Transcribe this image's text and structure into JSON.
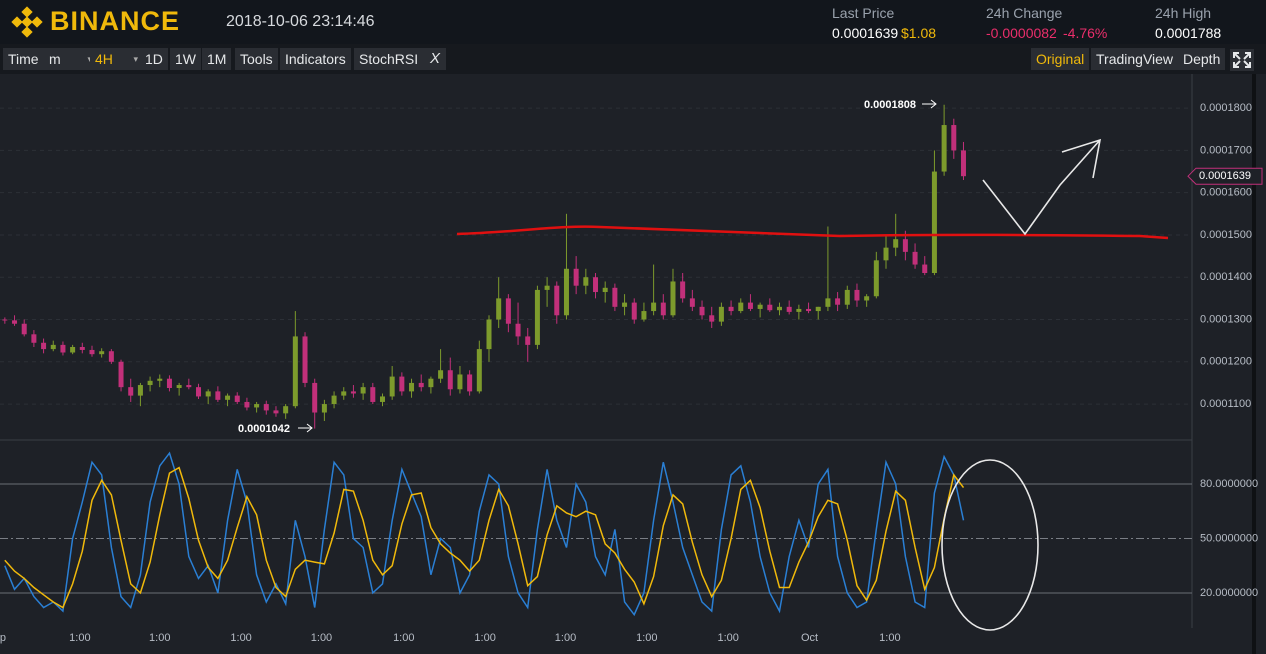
{
  "header": {
    "logo": "BINANCE",
    "datetime": "2018-10-06 23:14:46",
    "stats": [
      {
        "label": "Last Price",
        "value": "0.0001639",
        "extra": "$1.08"
      },
      {
        "label": "24h Change",
        "value": "-0.0000082",
        "extra": "-4.76%"
      },
      {
        "label": "24h High",
        "value": "0.0001788"
      }
    ]
  },
  "toolbar": {
    "left": [
      "Time",
      "m",
      "4H",
      "1D",
      "1W",
      "1M",
      "Tools",
      "Indicators",
      "StochRSI"
    ],
    "close": "X",
    "right": [
      "Original",
      "TradingView",
      "Depth"
    ]
  },
  "chart_data": [
    {
      "type": "candlestick",
      "up_color": "#7d9b2c",
      "down_color": "#c2307a",
      "open": [
        0.00013,
        0.0001298,
        0.000129,
        0.0001265,
        0.0001245,
        0.000123,
        0.000124,
        0.0001222,
        0.0001235,
        0.0001228,
        0.0001218,
        0.0001225,
        0.00012,
        0.000114,
        0.000112,
        0.0001145,
        0.0001155,
        0.000116,
        0.0001138,
        0.0001145,
        0.000114,
        0.0001118,
        0.000113,
        0.000111,
        0.000112,
        0.0001105,
        0.0001092,
        0.00011,
        0.0001085,
        0.0001078,
        0.0001095,
        0.000126,
        0.000115,
        0.000108,
        0.00011,
        0.000112,
        0.000113,
        0.0001125,
        0.000114,
        0.0001105,
        0.0001118,
        0.0001165,
        0.000113,
        0.000115,
        0.000114,
        0.000116,
        0.000118,
        0.0001135,
        0.000117,
        0.000113,
        0.000123,
        0.00013,
        0.000135,
        0.000129,
        0.000126,
        0.000124,
        0.000137,
        0.000138,
        0.000131,
        0.000142,
        0.000138,
        0.00014,
        0.0001365,
        0.0001375,
        0.000133,
        0.000134,
        0.00013,
        0.000132,
        0.000134,
        0.000131,
        0.000139,
        0.000135,
        0.000133,
        0.000131,
        0.0001295,
        0.000133,
        0.000132,
        0.000134,
        0.0001325,
        0.0001335,
        0.0001322,
        0.000133,
        0.0001318,
        0.0001325,
        0.000132,
        0.000133,
        0.000135,
        0.0001335,
        0.000137,
        0.0001345,
        0.0001355,
        0.000144,
        0.000147,
        0.000149,
        0.000146,
        0.000143,
        0.000141,
        0.000165,
        0.000176,
        0.00017
      ],
      "high": [
        0.0001305,
        0.000131,
        0.00013,
        0.0001275,
        0.0001255,
        0.000125,
        0.0001248,
        0.000124,
        0.0001245,
        0.0001238,
        0.0001232,
        0.000123,
        0.0001205,
        0.000116,
        0.000115,
        0.0001165,
        0.000117,
        0.0001168,
        0.000115,
        0.000116,
        0.0001148,
        0.0001135,
        0.0001142,
        0.0001125,
        0.0001128,
        0.0001115,
        0.0001105,
        0.0001108,
        0.0001095,
        0.00011,
        0.000132,
        0.000127,
        0.000116,
        0.000111,
        0.000113,
        0.000114,
        0.0001145,
        0.000115,
        0.000115,
        0.0001125,
        0.000119,
        0.0001175,
        0.000116,
        0.000117,
        0.0001165,
        0.000123,
        0.000121,
        0.000119,
        0.000118,
        0.000125,
        0.000131,
        0.00014,
        0.000136,
        0.000134,
        0.000128,
        0.000138,
        0.00014,
        0.000139,
        0.000155,
        0.000145,
        0.000142,
        0.000141,
        0.000139,
        0.0001385,
        0.000136,
        0.000135,
        0.000134,
        0.000143,
        0.000136,
        0.000142,
        0.000141,
        0.000137,
        0.0001345,
        0.000133,
        0.000134,
        0.0001345,
        0.000135,
        0.000136,
        0.000134,
        0.000135,
        0.000134,
        0.0001345,
        0.0001335,
        0.000134,
        0.000133,
        0.000152,
        0.0001365,
        0.000138,
        0.0001385,
        0.000136,
        0.000146,
        0.00015,
        0.000155,
        0.000151,
        0.000148,
        0.000145,
        0.00017,
        0.0001808,
        0.0001775,
        0.000172
      ],
      "low": [
        0.000129,
        0.0001285,
        0.000126,
        0.0001235,
        0.000122,
        0.0001225,
        0.0001215,
        0.0001218,
        0.000122,
        0.0001212,
        0.000121,
        0.0001195,
        0.000113,
        0.0001105,
        0.0001095,
        0.000113,
        0.000114,
        0.000113,
        0.000112,
        0.0001135,
        0.0001112,
        0.00011,
        0.0001105,
        0.0001095,
        0.00011,
        0.0001085,
        0.000108,
        0.0001075,
        0.000107,
        0.0001065,
        0.000109,
        0.000114,
        0.0001042,
        0.000106,
        0.000109,
        0.000111,
        0.0001115,
        0.000111,
        0.00011,
        0.0001095,
        0.000111,
        0.000112,
        0.0001115,
        0.000113,
        0.0001125,
        0.000115,
        0.000112,
        0.0001125,
        0.000112,
        0.0001125,
        0.00012,
        0.000128,
        0.000127,
        0.000124,
        0.00012,
        0.000123,
        0.000133,
        0.000129,
        0.00013,
        0.000136,
        0.000136,
        0.000135,
        0.000134,
        0.000132,
        0.000131,
        0.000129,
        0.0001295,
        0.000131,
        0.00013,
        0.0001305,
        0.000134,
        0.000132,
        0.00013,
        0.000128,
        0.0001285,
        0.000131,
        0.0001315,
        0.000132,
        0.0001305,
        0.0001318,
        0.000131,
        0.0001312,
        0.00013,
        0.0001315,
        0.00013,
        0.000132,
        0.000132,
        0.0001325,
        0.000133,
        0.000133,
        0.000135,
        0.000142,
        0.000145,
        0.000144,
        0.000142,
        0.0001405,
        0.0001405,
        0.000164,
        0.000168,
        0.000163
      ],
      "close": [
        0.0001298,
        0.000129,
        0.0001265,
        0.0001245,
        0.000123,
        0.000124,
        0.0001222,
        0.0001235,
        0.0001228,
        0.0001218,
        0.0001225,
        0.00012,
        0.000114,
        0.000112,
        0.0001145,
        0.0001155,
        0.000116,
        0.0001138,
        0.0001145,
        0.000114,
        0.0001118,
        0.000113,
        0.000111,
        0.000112,
        0.0001105,
        0.0001092,
        0.00011,
        0.0001085,
        0.0001078,
        0.0001095,
        0.000126,
        0.000115,
        0.000108,
        0.00011,
        0.000112,
        0.000113,
        0.0001125,
        0.000114,
        0.0001105,
        0.0001118,
        0.0001165,
        0.000113,
        0.000115,
        0.000114,
        0.000116,
        0.000118,
        0.0001135,
        0.000117,
        0.000113,
        0.000123,
        0.00013,
        0.000135,
        0.000129,
        0.000126,
        0.000124,
        0.000137,
        0.000138,
        0.000131,
        0.000142,
        0.000138,
        0.00014,
        0.0001365,
        0.0001375,
        0.000133,
        0.000134,
        0.00013,
        0.000132,
        0.000134,
        0.000131,
        0.000139,
        0.000135,
        0.000133,
        0.000131,
        0.0001295,
        0.000133,
        0.000132,
        0.000134,
        0.0001325,
        0.0001335,
        0.0001322,
        0.000133,
        0.0001318,
        0.0001325,
        0.000132,
        0.000133,
        0.000135,
        0.0001335,
        0.000137,
        0.0001345,
        0.0001355,
        0.000144,
        0.000147,
        0.000149,
        0.000146,
        0.000143,
        0.000141,
        0.000165,
        0.000176,
        0.00017,
        0.0001639
      ],
      "ylim": [
        0.0001015,
        0.0001876
      ],
      "yticks": [
        {
          "value": 0.00011,
          "label": "0.0001100"
        },
        {
          "value": 0.00012,
          "label": "0.0001200"
        },
        {
          "value": 0.00013,
          "label": "0.0001300"
        },
        {
          "value": 0.00014,
          "label": "0.0001400"
        },
        {
          "value": 0.00015,
          "label": "0.0001500"
        },
        {
          "value": 0.00016,
          "label": "0.0001600"
        },
        {
          "value": 0.00017,
          "label": "0.0001700"
        },
        {
          "value": 0.00018,
          "label": "0.0001800"
        }
      ],
      "xlim": [
        -0.5,
        122.6
      ],
      "xticks": [
        {
          "value": -0.2,
          "label": "p"
        },
        {
          "value": 7.75,
          "label": "1:00"
        },
        {
          "value": 16.0,
          "label": "1:00"
        },
        {
          "value": 24.4,
          "label": "1:00"
        },
        {
          "value": 32.7,
          "label": "1:00"
        },
        {
          "value": 41.2,
          "label": "1:00"
        },
        {
          "value": 49.6,
          "label": "1:00"
        },
        {
          "value": 57.9,
          "label": "1:00"
        },
        {
          "value": 66.3,
          "label": "1:00"
        },
        {
          "value": 74.7,
          "label": "1:00"
        },
        {
          "value": 83.1,
          "label": "Oct"
        },
        {
          "value": 91.4,
          "label": "1:00"
        }
      ],
      "annotations": [
        "0.0001808",
        "0.0001042"
      ],
      "last_price_marker": {
        "value": 0.0001639,
        "label": "0.0001639"
      }
    },
    {
      "type": "line",
      "series": [
        {
          "color": "#2a7fd4",
          "values": [
            35,
            22,
            28,
            18,
            12,
            15,
            10,
            50,
            70,
            92,
            85,
            45,
            18,
            12,
            30,
            70,
            90,
            97,
            80,
            40,
            28,
            35,
            20,
            60,
            88,
            70,
            30,
            15,
            25,
            14,
            60,
            40,
            12,
            55,
            92,
            85,
            50,
            45,
            20,
            25,
            60,
            88,
            75,
            62,
            30,
            50,
            45,
            20,
            30,
            65,
            85,
            80,
            40,
            20,
            12,
            55,
            88,
            60,
            45,
            80,
            70,
            40,
            30,
            55,
            15,
            8,
            20,
            60,
            92,
            70,
            45,
            30,
            15,
            10,
            55,
            85,
            90,
            70,
            40,
            20,
            10,
            40,
            60,
            45,
            80,
            88,
            40,
            20,
            12,
            15,
            55,
            92,
            80,
            40,
            15,
            12,
            75,
            95,
            85,
            60
          ]
        },
        {
          "color": "#f0b90b",
          "values": [
            38,
            32,
            28,
            23,
            19,
            15,
            12,
            25,
            43,
            71,
            82,
            74,
            49,
            25,
            20,
            37,
            63,
            86,
            89,
            72,
            49,
            34,
            28,
            38,
            56,
            73,
            63,
            38,
            23,
            18,
            33,
            38,
            37,
            36,
            53,
            77,
            76,
            60,
            38,
            30,
            35,
            58,
            74,
            75,
            56,
            47,
            42,
            38,
            32,
            38,
            60,
            77,
            68,
            47,
            24,
            29,
            52,
            68,
            64,
            62,
            65,
            63,
            47,
            42,
            33,
            26,
            14,
            29,
            57,
            74,
            69,
            48,
            30,
            18,
            27,
            50,
            77,
            82,
            67,
            43,
            23,
            23,
            37,
            48,
            62,
            71,
            69,
            49,
            24,
            16,
            27,
            54,
            76,
            71,
            45,
            22,
            34,
            61,
            85,
            78
          ]
        }
      ],
      "ylim": [
        0.7,
        104.2
      ],
      "yticks": [
        {
          "value": 20,
          "label": "20.0000000"
        },
        {
          "value": 50,
          "label": "50.0000000"
        },
        {
          "value": 80,
          "label": "80.0000000"
        }
      ]
    }
  ]
}
